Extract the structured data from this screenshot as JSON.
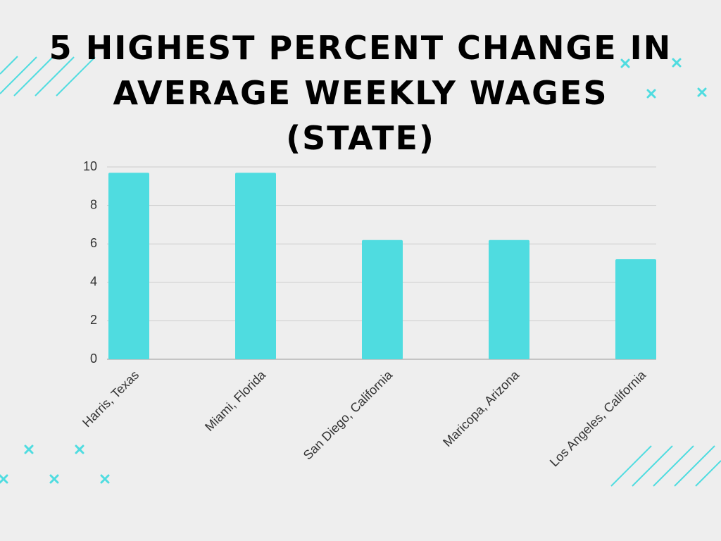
{
  "chart_data": {
    "type": "bar",
    "title": "5 HIGHEST PERCENT CHANGE IN AVERAGE WEEKLY WAGES (STATE)",
    "categories": [
      "Harris, Texas",
      "Miami, Florida",
      "San Diego, California",
      "Maricopa, Arizona",
      "Los Angeles, California"
    ],
    "values": [
      9.7,
      9.7,
      6.2,
      6.2,
      5.2
    ],
    "color": "#4fdce0",
    "ylim": [
      0,
      10
    ],
    "yticks": [
      0,
      2,
      4,
      6,
      8,
      10
    ],
    "grid": true
  }
}
